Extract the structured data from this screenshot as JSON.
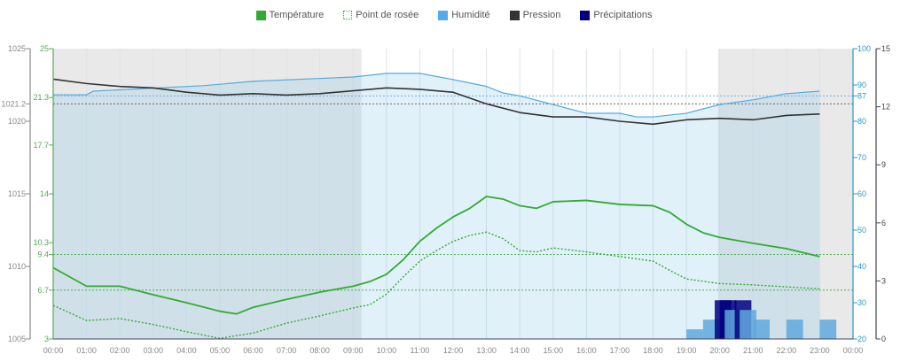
{
  "chart_data": {
    "type": "line",
    "legend_position": "top-center",
    "legend": [
      {
        "name": "Température",
        "color": "#33aa33",
        "style": "solid"
      },
      {
        "name": "Point de rosée",
        "color": "#33aa33",
        "style": "dotted"
      },
      {
        "name": "Humidité",
        "color": "#55aaee",
        "style": "solid"
      },
      {
        "name": "Pression",
        "color": "#333333",
        "style": "solid"
      },
      {
        "name": "Précipitations",
        "color": "#000080",
        "style": "solid"
      }
    ],
    "x_ticks": [
      "00:00",
      "01:00",
      "02:00",
      "03:00",
      "04:00",
      "05:00",
      "06:00",
      "07:00",
      "08:00",
      "09:00",
      "10:00",
      "11:00",
      "12:00",
      "13:00",
      "14:00",
      "15:00",
      "16:00",
      "17:00",
      "18:00",
      "19:00",
      "20:00",
      "21:00",
      "22:00",
      "23:00",
      "00:00"
    ],
    "xlim_hours": [
      0,
      24
    ],
    "night_ranges_hours": [
      [
        0,
        9.25
      ],
      [
        19.95,
        24
      ]
    ],
    "axes": {
      "pressure": {
        "range": [
          1005,
          1025
        ],
        "ticks": [
          "1025",
          "1021.2",
          "1020",
          "1015",
          "1010",
          "1005"
        ],
        "tick_values": [
          1025,
          1021.2,
          1020,
          1015,
          1010,
          1005
        ]
      },
      "temperature": {
        "range": [
          3,
          25
        ],
        "ticks": [
          "25",
          "21.3",
          "17.7",
          "14",
          "10.3",
          "9.4",
          "6.7",
          "3"
        ],
        "tick_values": [
          25,
          21.3,
          17.7,
          14,
          10.3,
          9.4,
          6.7,
          3
        ]
      },
      "humidity": {
        "range": [
          20,
          100
        ],
        "ticks": [
          "100",
          "90",
          "87",
          "80",
          "70",
          "60",
          "50",
          "40",
          "30",
          "20"
        ],
        "tick_values": [
          100,
          90,
          87,
          80,
          70,
          60,
          50,
          40,
          30,
          20
        ]
      },
      "precipitation": {
        "range": [
          0,
          15
        ],
        "ticks": [
          "15",
          "12",
          "9",
          "6",
          "3",
          "0"
        ],
        "tick_values": [
          15,
          12,
          9,
          6,
          3,
          0
        ]
      }
    },
    "reference_lines": {
      "temperature": [
        9.4,
        6.7
      ],
      "humidity": [
        87
      ],
      "pressure": [
        1021.2
      ]
    },
    "series": {
      "temperature": {
        "x": [
          0,
          1,
          2,
          3,
          4,
          5,
          5.5,
          6,
          7,
          8,
          9,
          9.5,
          10,
          10.5,
          11,
          11.5,
          12,
          12.5,
          13,
          13.5,
          14,
          14.5,
          15,
          16,
          17,
          18,
          18.5,
          19,
          19.5,
          20,
          21,
          22,
          23
        ],
        "y": [
          8.4,
          7.0,
          7.0,
          6.35,
          5.75,
          5.1,
          4.9,
          5.4,
          6.0,
          6.55,
          7.0,
          7.35,
          7.9,
          9.0,
          10.4,
          11.4,
          12.25,
          12.9,
          13.8,
          13.6,
          13.1,
          12.9,
          13.4,
          13.5,
          13.2,
          13.1,
          12.6,
          11.7,
          11.05,
          10.7,
          10.25,
          9.85,
          9.25
        ]
      },
      "dew_point": {
        "x": [
          0,
          1,
          2,
          3,
          4,
          5,
          6,
          7,
          8,
          9,
          9.5,
          10,
          10.5,
          11,
          11.5,
          12,
          12.5,
          13,
          13.5,
          14,
          14.5,
          15,
          16,
          17,
          18,
          18.5,
          19,
          20,
          21,
          22,
          23
        ],
        "y": [
          5.55,
          4.4,
          4.55,
          4.1,
          3.55,
          3.05,
          3.45,
          4.2,
          4.75,
          5.35,
          5.6,
          6.4,
          7.7,
          8.9,
          9.7,
          10.4,
          10.85,
          11.1,
          10.6,
          9.7,
          9.6,
          9.9,
          9.6,
          9.25,
          8.9,
          8.2,
          7.55,
          7.2,
          7.1,
          6.95,
          6.8
        ]
      },
      "humidity": {
        "x": [
          0,
          1,
          1.2,
          4.5,
          6,
          9,
          10,
          11,
          12,
          13,
          13.5,
          14,
          15,
          16,
          17,
          17.5,
          18,
          19,
          20,
          21,
          22,
          23
        ],
        "y": [
          87.3,
          87.3,
          88.3,
          89.8,
          91,
          92.2,
          93.2,
          93.2,
          91.5,
          89.6,
          87.8,
          87,
          84.6,
          82.2,
          82.2,
          81.2,
          81.2,
          82.2,
          84.6,
          85.9,
          87.6,
          88.3
        ]
      },
      "pressure": {
        "x": [
          0,
          1,
          2,
          3,
          4,
          5,
          6,
          7,
          8,
          9,
          10,
          11,
          12,
          13,
          14,
          15,
          16,
          17,
          18,
          19,
          20,
          21,
          22,
          23
        ],
        "y": [
          1022.9,
          1022.6,
          1022.4,
          1022.3,
          1022.0,
          1021.8,
          1021.9,
          1021.8,
          1021.9,
          1022.1,
          1022.3,
          1022.2,
          1022.0,
          1021.2,
          1020.6,
          1020.3,
          1020.3,
          1020.0,
          1019.8,
          1020.1,
          1020.2,
          1020.1,
          1020.4,
          1020.5
        ]
      },
      "precipitation": {
        "x": [
          19.0,
          19.5,
          19.85,
          20.0,
          20.15,
          20.45,
          20.6,
          21,
          22,
          23
        ],
        "y": [
          0.05,
          0.1,
          0.2,
          0.2,
          0.15,
          0.2,
          0.15,
          0.1,
          0.1,
          0.1
        ]
      }
    }
  }
}
